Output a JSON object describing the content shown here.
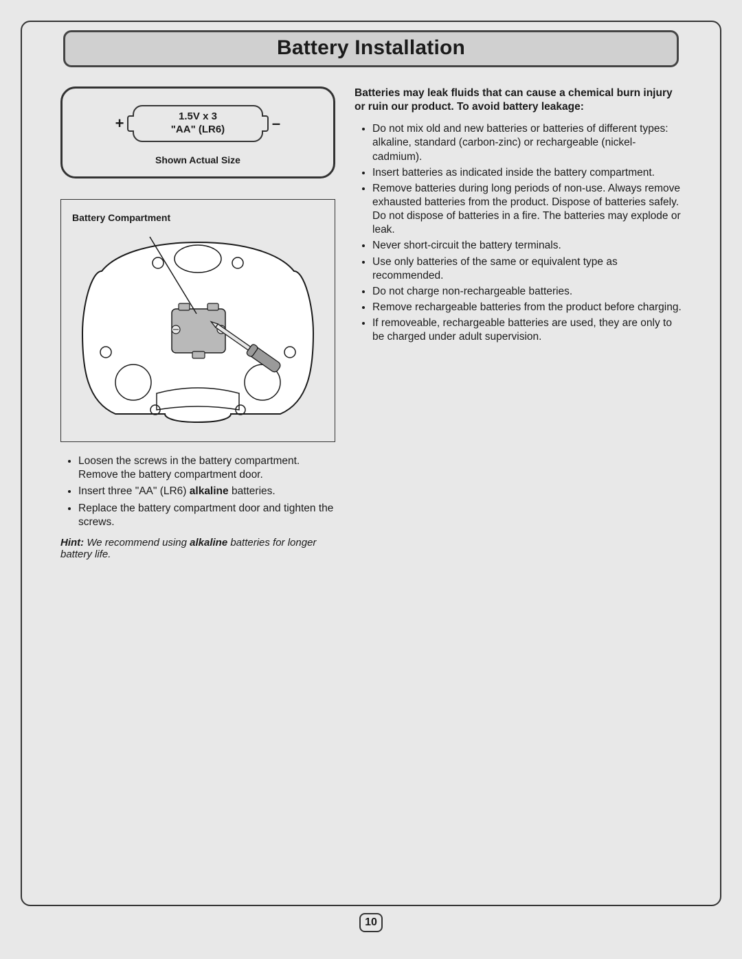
{
  "title": "Battery Installation",
  "battery_panel": {
    "plus": "+",
    "minus": "–",
    "voltage": "1.5V x 3",
    "type": "\"AA\" (LR6)",
    "actual_size": "Shown Actual Size"
  },
  "diagram": {
    "label": "Battery Compartment",
    "stroke": "#1a1a1a",
    "body_fill": "#ffffff",
    "cover_fill": "#b9b9b9",
    "screwdriver_fill": "#9a9a9a"
  },
  "left_instructions": [
    "Loosen the screws in the battery compartment. Remove the battery compartment door.",
    "Insert three \"AA\" (LR6) <b>alkaline</b> batteries.",
    "Replace the battery compartment door and tighten the screws."
  ],
  "hint": {
    "lead": "Hint:",
    "body_before": " We recommend using ",
    "alkaline": "alkaline",
    "body_after": " batteries for longer battery life."
  },
  "warning_heading": "Batteries may leak fluids that can cause a chemical burn injury or ruin our product. To avoid battery leakage:",
  "warnings": [
    "Do not mix old and new batteries or batteries of different types: alkaline, standard (carbon-zinc) or rechargeable (nickel-cadmium).",
    "Insert batteries as indicated inside the battery compartment.",
    "Remove batteries during long periods of non-use. Always remove exhausted batteries from the product. Dispose of batteries safely. Do not dispose of batteries in a fire. The batteries may explode or leak.",
    "Never short-circuit the battery terminals.",
    "Use only batteries of the same or equivalent type as recommended.",
    "Do not charge non-rechargeable batteries.",
    "Remove rechargeable batteries from the product before charging.",
    "If removeable, rechargeable batteries are used, they are only to be charged under adult supervision."
  ],
  "page_number": "10",
  "colors": {
    "page_bg": "#e8e8e8",
    "border": "#333333",
    "title_bg": "#d0d0d0"
  }
}
